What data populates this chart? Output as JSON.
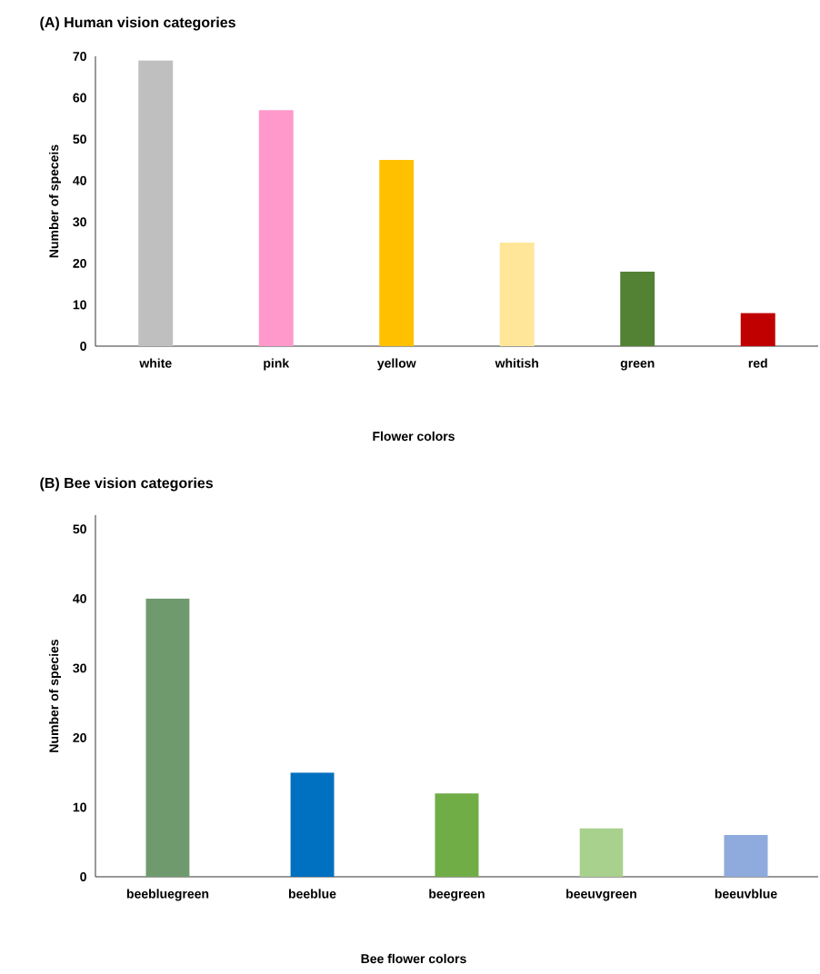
{
  "chart_data": [
    {
      "type": "bar",
      "title": "(A)  Human vision categories",
      "xlabel": "Flower colors",
      "ylabel": "Number of speceis",
      "categories": [
        "white",
        "pink",
        "yellow",
        "whitish",
        "green",
        "red"
      ],
      "values": [
        69,
        57,
        45,
        25,
        18,
        8
      ],
      "colors": [
        "#bfbfbf",
        "#ff99cc",
        "#ffc000",
        "#ffe699",
        "#548235",
        "#c00000"
      ],
      "ylim": [
        0,
        70
      ],
      "yticks": [
        0,
        10,
        20,
        30,
        40,
        50,
        60,
        70
      ]
    },
    {
      "type": "bar",
      "title": "(B)   Bee vision categories",
      "xlabel": "Bee flower colors",
      "ylabel": "Number of species",
      "categories": [
        "beebluegreen",
        "beeblue",
        "beegreen",
        "beeuvgreen",
        "beeuvblue"
      ],
      "values": [
        40,
        15,
        12,
        7,
        6
      ],
      "colors": [
        "#6f9a6e",
        "#0070c0",
        "#70ad47",
        "#a9d18e",
        "#8faadc"
      ],
      "ylim": [
        0,
        52
      ],
      "yticks": [
        0,
        10,
        20,
        30,
        40,
        50
      ]
    }
  ]
}
